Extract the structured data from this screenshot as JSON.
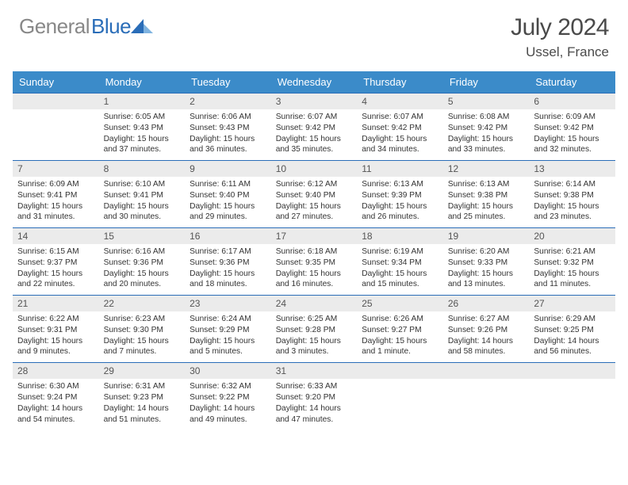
{
  "logo": {
    "gray": "General",
    "blue": "Blue"
  },
  "month_title": "July 2024",
  "location": "Ussel, France",
  "colors": {
    "header_bg": "#3b8bc9",
    "row_border": "#2a6db8",
    "daynum_bg": "#ebebeb",
    "logo_gray": "#888888",
    "logo_blue": "#2a6db8",
    "text": "#333333"
  },
  "day_headers": [
    "Sunday",
    "Monday",
    "Tuesday",
    "Wednesday",
    "Thursday",
    "Friday",
    "Saturday"
  ],
  "weeks": [
    {
      "nums": [
        "",
        "1",
        "2",
        "3",
        "4",
        "5",
        "6"
      ],
      "cells": [
        null,
        {
          "sunrise": "Sunrise: 6:05 AM",
          "sunset": "Sunset: 9:43 PM",
          "daylight": "Daylight: 15 hours and 37 minutes."
        },
        {
          "sunrise": "Sunrise: 6:06 AM",
          "sunset": "Sunset: 9:43 PM",
          "daylight": "Daylight: 15 hours and 36 minutes."
        },
        {
          "sunrise": "Sunrise: 6:07 AM",
          "sunset": "Sunset: 9:42 PM",
          "daylight": "Daylight: 15 hours and 35 minutes."
        },
        {
          "sunrise": "Sunrise: 6:07 AM",
          "sunset": "Sunset: 9:42 PM",
          "daylight": "Daylight: 15 hours and 34 minutes."
        },
        {
          "sunrise": "Sunrise: 6:08 AM",
          "sunset": "Sunset: 9:42 PM",
          "daylight": "Daylight: 15 hours and 33 minutes."
        },
        {
          "sunrise": "Sunrise: 6:09 AM",
          "sunset": "Sunset: 9:42 PM",
          "daylight": "Daylight: 15 hours and 32 minutes."
        }
      ]
    },
    {
      "nums": [
        "7",
        "8",
        "9",
        "10",
        "11",
        "12",
        "13"
      ],
      "cells": [
        {
          "sunrise": "Sunrise: 6:09 AM",
          "sunset": "Sunset: 9:41 PM",
          "daylight": "Daylight: 15 hours and 31 minutes."
        },
        {
          "sunrise": "Sunrise: 6:10 AM",
          "sunset": "Sunset: 9:41 PM",
          "daylight": "Daylight: 15 hours and 30 minutes."
        },
        {
          "sunrise": "Sunrise: 6:11 AM",
          "sunset": "Sunset: 9:40 PM",
          "daylight": "Daylight: 15 hours and 29 minutes."
        },
        {
          "sunrise": "Sunrise: 6:12 AM",
          "sunset": "Sunset: 9:40 PM",
          "daylight": "Daylight: 15 hours and 27 minutes."
        },
        {
          "sunrise": "Sunrise: 6:13 AM",
          "sunset": "Sunset: 9:39 PM",
          "daylight": "Daylight: 15 hours and 26 minutes."
        },
        {
          "sunrise": "Sunrise: 6:13 AM",
          "sunset": "Sunset: 9:38 PM",
          "daylight": "Daylight: 15 hours and 25 minutes."
        },
        {
          "sunrise": "Sunrise: 6:14 AM",
          "sunset": "Sunset: 9:38 PM",
          "daylight": "Daylight: 15 hours and 23 minutes."
        }
      ]
    },
    {
      "nums": [
        "14",
        "15",
        "16",
        "17",
        "18",
        "19",
        "20"
      ],
      "cells": [
        {
          "sunrise": "Sunrise: 6:15 AM",
          "sunset": "Sunset: 9:37 PM",
          "daylight": "Daylight: 15 hours and 22 minutes."
        },
        {
          "sunrise": "Sunrise: 6:16 AM",
          "sunset": "Sunset: 9:36 PM",
          "daylight": "Daylight: 15 hours and 20 minutes."
        },
        {
          "sunrise": "Sunrise: 6:17 AM",
          "sunset": "Sunset: 9:36 PM",
          "daylight": "Daylight: 15 hours and 18 minutes."
        },
        {
          "sunrise": "Sunrise: 6:18 AM",
          "sunset": "Sunset: 9:35 PM",
          "daylight": "Daylight: 15 hours and 16 minutes."
        },
        {
          "sunrise": "Sunrise: 6:19 AM",
          "sunset": "Sunset: 9:34 PM",
          "daylight": "Daylight: 15 hours and 15 minutes."
        },
        {
          "sunrise": "Sunrise: 6:20 AM",
          "sunset": "Sunset: 9:33 PM",
          "daylight": "Daylight: 15 hours and 13 minutes."
        },
        {
          "sunrise": "Sunrise: 6:21 AM",
          "sunset": "Sunset: 9:32 PM",
          "daylight": "Daylight: 15 hours and 11 minutes."
        }
      ]
    },
    {
      "nums": [
        "21",
        "22",
        "23",
        "24",
        "25",
        "26",
        "27"
      ],
      "cells": [
        {
          "sunrise": "Sunrise: 6:22 AM",
          "sunset": "Sunset: 9:31 PM",
          "daylight": "Daylight: 15 hours and 9 minutes."
        },
        {
          "sunrise": "Sunrise: 6:23 AM",
          "sunset": "Sunset: 9:30 PM",
          "daylight": "Daylight: 15 hours and 7 minutes."
        },
        {
          "sunrise": "Sunrise: 6:24 AM",
          "sunset": "Sunset: 9:29 PM",
          "daylight": "Daylight: 15 hours and 5 minutes."
        },
        {
          "sunrise": "Sunrise: 6:25 AM",
          "sunset": "Sunset: 9:28 PM",
          "daylight": "Daylight: 15 hours and 3 minutes."
        },
        {
          "sunrise": "Sunrise: 6:26 AM",
          "sunset": "Sunset: 9:27 PM",
          "daylight": "Daylight: 15 hours and 1 minute."
        },
        {
          "sunrise": "Sunrise: 6:27 AM",
          "sunset": "Sunset: 9:26 PM",
          "daylight": "Daylight: 14 hours and 58 minutes."
        },
        {
          "sunrise": "Sunrise: 6:29 AM",
          "sunset": "Sunset: 9:25 PM",
          "daylight": "Daylight: 14 hours and 56 minutes."
        }
      ]
    },
    {
      "nums": [
        "28",
        "29",
        "30",
        "31",
        "",
        "",
        ""
      ],
      "cells": [
        {
          "sunrise": "Sunrise: 6:30 AM",
          "sunset": "Sunset: 9:24 PM",
          "daylight": "Daylight: 14 hours and 54 minutes."
        },
        {
          "sunrise": "Sunrise: 6:31 AM",
          "sunset": "Sunset: 9:23 PM",
          "daylight": "Daylight: 14 hours and 51 minutes."
        },
        {
          "sunrise": "Sunrise: 6:32 AM",
          "sunset": "Sunset: 9:22 PM",
          "daylight": "Daylight: 14 hours and 49 minutes."
        },
        {
          "sunrise": "Sunrise: 6:33 AM",
          "sunset": "Sunset: 9:20 PM",
          "daylight": "Daylight: 14 hours and 47 minutes."
        },
        null,
        null,
        null
      ]
    }
  ]
}
